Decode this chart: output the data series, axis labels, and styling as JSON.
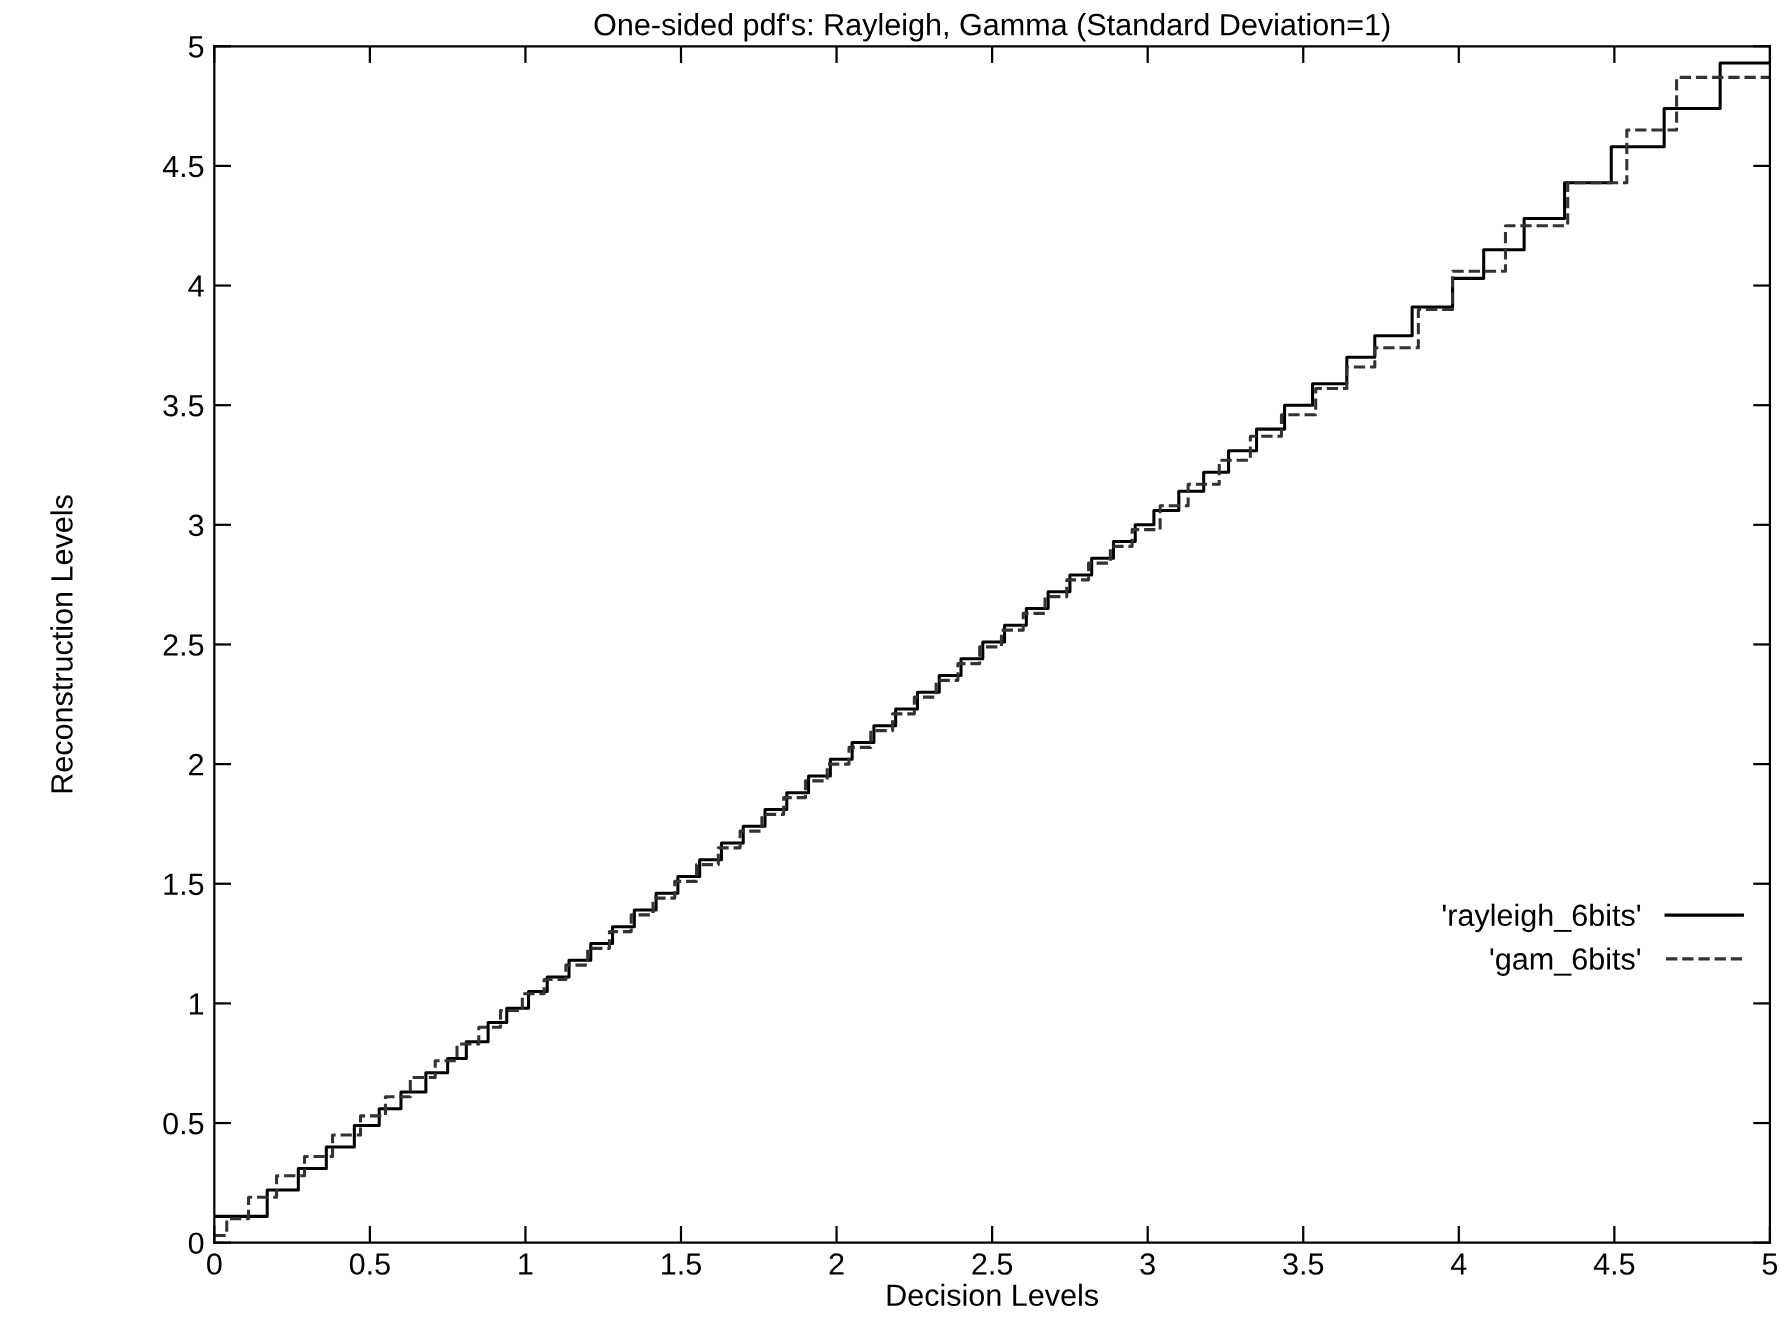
{
  "chart_data": {
    "type": "step",
    "title": "One-sided pdf's: Rayleigh, Gamma (Standard Deviation=1)",
    "xlabel": "Decision Levels",
    "ylabel": "Reconstruction Levels",
    "xlim": [
      0,
      5
    ],
    "ylim": [
      0,
      5
    ],
    "xticks": [
      0,
      0.5,
      1,
      1.5,
      2,
      2.5,
      3,
      3.5,
      4,
      4.5,
      5
    ],
    "yticks": [
      0,
      0.5,
      1,
      1.5,
      2,
      2.5,
      3,
      3.5,
      4,
      4.5,
      5
    ],
    "grid": false,
    "legend": "bottom right",
    "series": [
      {
        "name": "'rayleigh_6bits'",
        "color": "#000000",
        "line_style": "solid",
        "x": [
          0,
          0.17,
          0.27,
          0.36,
          0.45,
          0.53,
          0.6,
          0.68,
          0.75,
          0.81,
          0.88,
          0.94,
          1.01,
          1.07,
          1.14,
          1.21,
          1.28,
          1.35,
          1.42,
          1.49,
          1.56,
          1.63,
          1.7,
          1.77,
          1.84,
          1.91,
          1.98,
          2.05,
          2.12,
          2.19,
          2.26,
          2.33,
          2.4,
          2.47,
          2.54,
          2.61,
          2.68,
          2.75,
          2.82,
          2.89,
          2.96,
          3.02,
          3.1,
          3.18,
          3.26,
          3.35,
          3.44,
          3.53,
          3.64,
          3.73,
          3.85,
          3.98,
          4.08,
          4.21,
          4.34,
          4.49,
          4.66,
          4.84,
          5.0
        ],
        "values": [
          0.11,
          0.22,
          0.31,
          0.4,
          0.49,
          0.56,
          0.63,
          0.71,
          0.77,
          0.84,
          0.92,
          0.98,
          1.05,
          1.11,
          1.18,
          1.25,
          1.32,
          1.39,
          1.46,
          1.53,
          1.6,
          1.67,
          1.74,
          1.81,
          1.88,
          1.95,
          2.02,
          2.09,
          2.16,
          2.23,
          2.3,
          2.37,
          2.44,
          2.51,
          2.58,
          2.65,
          2.72,
          2.79,
          2.86,
          2.93,
          3.0,
          3.06,
          3.14,
          3.22,
          3.31,
          3.4,
          3.5,
          3.59,
          3.7,
          3.79,
          3.91,
          4.03,
          4.15,
          4.28,
          4.43,
          4.58,
          4.74,
          4.93,
          4.93
        ]
      },
      {
        "name": "'gam_6bits'",
        "color": "#333333",
        "line_style": "dashed",
        "x": [
          0,
          0.04,
          0.11,
          0.2,
          0.29,
          0.38,
          0.47,
          0.55,
          0.63,
          0.71,
          0.78,
          0.85,
          0.92,
          0.99,
          1.06,
          1.13,
          1.2,
          1.27,
          1.34,
          1.41,
          1.48,
          1.55,
          1.62,
          1.69,
          1.76,
          1.83,
          1.9,
          1.97,
          2.04,
          2.11,
          2.18,
          2.25,
          2.32,
          2.39,
          2.46,
          2.53,
          2.6,
          2.67,
          2.74,
          2.81,
          2.88,
          2.95,
          3.04,
          3.13,
          3.23,
          3.33,
          3.43,
          3.54,
          3.64,
          3.73,
          3.87,
          3.98,
          4.15,
          4.35,
          4.54,
          4.7,
          5.0
        ],
        "values": [
          0.03,
          0.1,
          0.19,
          0.28,
          0.36,
          0.45,
          0.53,
          0.61,
          0.69,
          0.76,
          0.83,
          0.9,
          0.97,
          1.04,
          1.1,
          1.16,
          1.23,
          1.3,
          1.37,
          1.44,
          1.51,
          1.58,
          1.65,
          1.72,
          1.79,
          1.86,
          1.93,
          2.0,
          2.07,
          2.14,
          2.21,
          2.28,
          2.35,
          2.42,
          2.49,
          2.56,
          2.63,
          2.7,
          2.77,
          2.84,
          2.91,
          2.98,
          3.08,
          3.17,
          3.27,
          3.37,
          3.46,
          3.57,
          3.66,
          3.74,
          3.9,
          4.06,
          4.25,
          4.43,
          4.65,
          4.87,
          4.87
        ]
      }
    ]
  }
}
